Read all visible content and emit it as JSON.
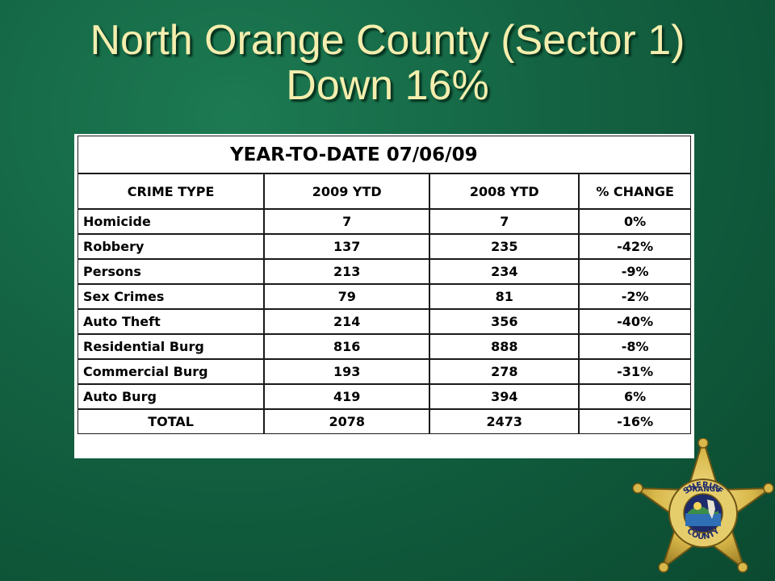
{
  "slide": {
    "title_line1": "North Orange County (Sector 1)",
    "title_line2": "Down 16%"
  },
  "table": {
    "banner": "YEAR-TO-DATE 07/06/09",
    "headers": [
      "CRIME TYPE",
      "2009 YTD",
      "2008 YTD",
      "% CHANGE"
    ],
    "rows": [
      [
        "Homicide",
        "7",
        "7",
        "0%"
      ],
      [
        "Robbery",
        "137",
        "235",
        "-42%"
      ],
      [
        "Persons",
        "213",
        "234",
        "-9%"
      ],
      [
        "Sex Crimes",
        "79",
        "81",
        "-2%"
      ],
      [
        "Auto Theft",
        "214",
        "356",
        "-40%"
      ],
      [
        "Residential Burg",
        "816",
        "888",
        "-8%"
      ],
      [
        "Commercial Burg",
        "193",
        "278",
        "-31%"
      ],
      [
        "Auto Burg",
        "419",
        "394",
        "6%"
      ]
    ],
    "total": [
      "TOTAL",
      "2078",
      "2473",
      "-16%"
    ]
  },
  "badge": {
    "text_top": "SHERIFF",
    "text_mid": "ORANGE",
    "text_bottom": "COUNTY",
    "colors": {
      "gold": "#d8b84a",
      "dark_gold": "#8a6a18",
      "navy": "#1d2a6b",
      "water": "#2f6fb5"
    }
  },
  "colors": {
    "background": "#136242",
    "title": "#f4eeae"
  }
}
